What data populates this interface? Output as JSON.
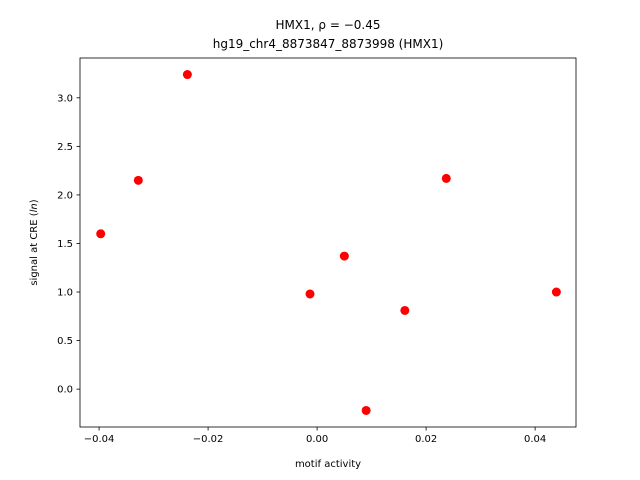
{
  "chart_data": {
    "type": "scatter",
    "title_line1": "HMX1, ρ = −0.45",
    "title_line2": "hg19_chr4_8873847_8873998 (HMX1)",
    "xlabel": "motif activity",
    "ylabel_prefix": "signal at CRE (",
    "ylabel_italic": "ln",
    "ylabel_suffix": ")",
    "xlim": [
      -0.0435,
      0.0475
    ],
    "ylim": [
      -0.39,
      3.41
    ],
    "xticks": [
      -0.04,
      -0.02,
      0.0,
      0.02,
      0.04
    ],
    "xtick_labels": [
      "−0.04",
      "−0.02",
      "0.00",
      "0.02",
      "0.04"
    ],
    "yticks": [
      0.0,
      0.5,
      1.0,
      1.5,
      2.0,
      2.5,
      3.0
    ],
    "ytick_labels": [
      "0.0",
      "0.5",
      "1.0",
      "1.5",
      "2.0",
      "2.5",
      "3.0"
    ],
    "marker_color": "#ff0000",
    "grid": false,
    "points": [
      {
        "x": -0.0397,
        "y": 1.6
      },
      {
        "x": -0.0328,
        "y": 2.15
      },
      {
        "x": -0.0238,
        "y": 3.24
      },
      {
        "x": -0.0013,
        "y": 0.98
      },
      {
        "x": 0.005,
        "y": 1.37
      },
      {
        "x": 0.009,
        "y": -0.22
      },
      {
        "x": 0.0161,
        "y": 0.81
      },
      {
        "x": 0.0237,
        "y": 2.17
      },
      {
        "x": 0.0439,
        "y": 1.0
      }
    ]
  }
}
